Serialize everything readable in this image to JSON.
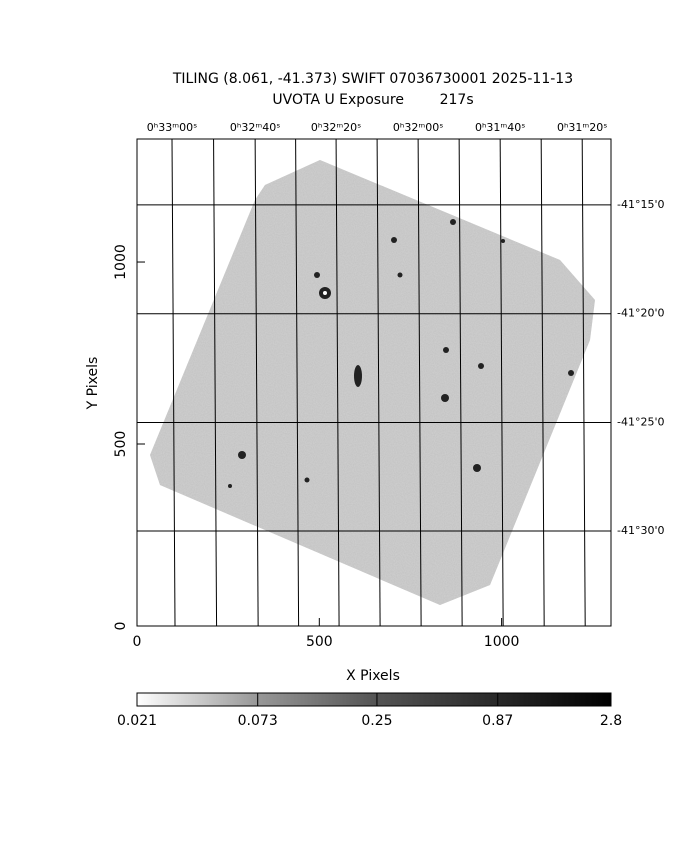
{
  "chart_data": {
    "type": "image",
    "title": "TILING (8.061, -41.373) SWIFT 07036730001 2025-11-13",
    "subtitle": "UVOTA U Exposure        217s",
    "x_label": "X Pixels",
    "y_label": "Y Pixels",
    "xlim": [
      0,
      1300
    ],
    "ylim": [
      0,
      1338
    ],
    "xticks": [
      0,
      500,
      1000
    ],
    "yticks": [
      0,
      500,
      1000
    ],
    "ra_ticks": [
      {
        "value": 96,
        "label": "0ʰ33ᵐ00ˢ"
      },
      {
        "value": 324,
        "label": "0ʰ32ᵐ40ˢ"
      },
      {
        "value": 546,
        "label": "0ʰ32ᵐ20ˢ"
      },
      {
        "value": 771,
        "label": "0ʰ32ᵐ00ˢ"
      },
      {
        "value": 996,
        "label": "0ʰ31ᵐ40ˢ"
      },
      {
        "value": 1221,
        "label": "0ʰ31ᵐ20ˢ"
      }
    ],
    "dec_ticks": [
      {
        "value": 1157,
        "label": "-41°15'0"
      },
      {
        "value": 858,
        "label": "-41°20'0"
      },
      {
        "value": 559,
        "label": "-41°25'0"
      },
      {
        "value": 261,
        "label": "-41°30'0"
      }
    ],
    "colorbar": {
      "lim": [
        0.021,
        2.8
      ],
      "log": true,
      "ticks": [
        0.021,
        0.073,
        0.25,
        0.87,
        2.8
      ]
    }
  }
}
